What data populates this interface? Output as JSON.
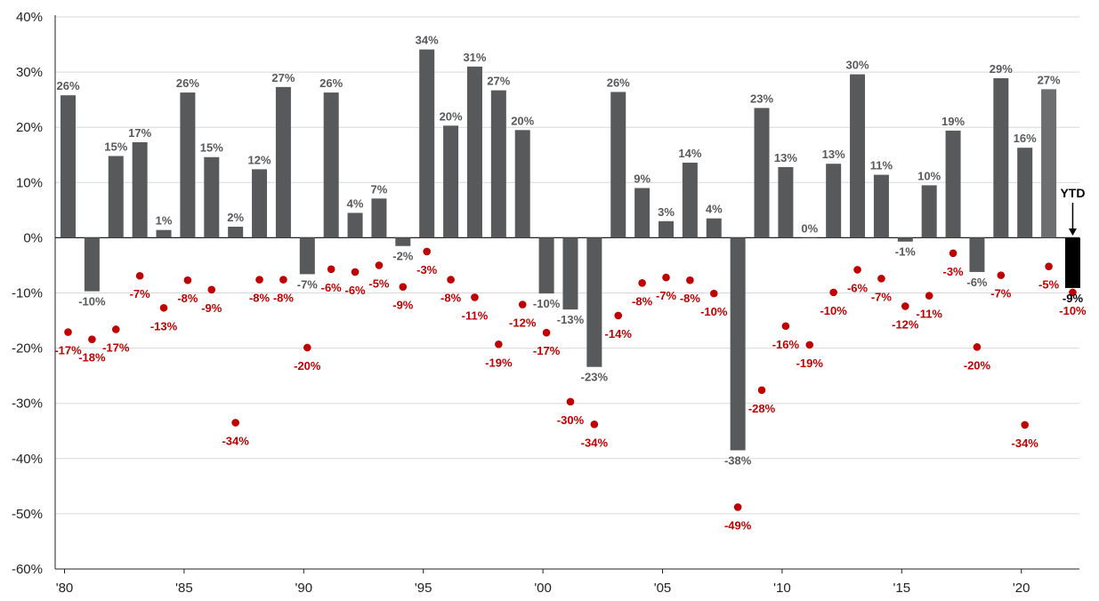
{
  "chart_data": {
    "type": "bar",
    "title": "",
    "xlabel": "",
    "ylabel": "",
    "ylim": [
      -60,
      40
    ],
    "yticks": [
      40,
      30,
      20,
      10,
      0,
      -10,
      -20,
      -30,
      -40,
      -50,
      -60
    ],
    "ytick_labels": [
      "40%",
      "30%",
      "20%",
      "10%",
      "0%",
      "-10%",
      "-20%",
      "-30%",
      "-40%",
      "-50%",
      "-60%"
    ],
    "grid": true,
    "x": [
      1980,
      1981,
      1982,
      1983,
      1984,
      1985,
      1986,
      1987,
      1988,
      1989,
      1990,
      1991,
      1992,
      1993,
      1994,
      1995,
      1996,
      1997,
      1998,
      1999,
      2000,
      2001,
      2002,
      2003,
      2004,
      2005,
      2006,
      2007,
      2008,
      2009,
      2010,
      2011,
      2012,
      2013,
      2014,
      2015,
      2016,
      2017,
      2018,
      2019,
      2020,
      2021,
      2022
    ],
    "xtick_years": [
      1980,
      1985,
      1990,
      1995,
      2000,
      2005,
      2010,
      2015,
      2020
    ],
    "xtick_labels": [
      "'80",
      "'85",
      "'90",
      "'95",
      "'00",
      "'05",
      "'10",
      "'15",
      "'20"
    ],
    "series": [
      {
        "role": "annual return",
        "values": [
          25.8,
          -9.7,
          14.8,
          17.3,
          1.4,
          26.3,
          14.6,
          2.0,
          12.4,
          27.3,
          -6.6,
          26.3,
          4.5,
          7.1,
          -1.5,
          34.1,
          20.3,
          31.0,
          26.7,
          19.5,
          -10.1,
          -13.0,
          -23.4,
          26.4,
          9.0,
          3.0,
          13.6,
          3.5,
          -38.5,
          23.5,
          12.8,
          0.0,
          13.4,
          29.6,
          11.4,
          -0.7,
          9.5,
          19.4,
          -6.2,
          28.9,
          16.3,
          26.9,
          -9.1
        ],
        "labels": [
          "26%",
          "-10%",
          "15%",
          "17%",
          "1%",
          "26%",
          "15%",
          "2%",
          "12%",
          "27%",
          "-7%",
          "26%",
          "4%",
          "7%",
          "-2%",
          "34%",
          "20%",
          "31%",
          "27%",
          "20%",
          "-10%",
          "-13%",
          "-23%",
          "26%",
          "9%",
          "3%",
          "14%",
          "4%",
          "-38%",
          "23%",
          "13%",
          "0%",
          "13%",
          "30%",
          "11%",
          "-1%",
          "10%",
          "19%",
          "-6%",
          "29%",
          "16%",
          "27%",
          "-9%"
        ]
      },
      {
        "role": "intra-year decline",
        "values": [
          -17.1,
          -18.4,
          -16.6,
          -6.9,
          -12.7,
          -7.7,
          -9.4,
          -33.5,
          -7.6,
          -7.6,
          -19.9,
          -5.7,
          -6.2,
          -5.0,
          -8.9,
          -2.5,
          -7.6,
          -10.8,
          -19.3,
          -12.1,
          -17.2,
          -29.7,
          -33.8,
          -14.1,
          -8.2,
          -7.2,
          -7.7,
          -10.1,
          -48.8,
          -27.6,
          -16.0,
          -19.4,
          -9.9,
          -5.8,
          -7.4,
          -12.4,
          -10.5,
          -2.8,
          -19.8,
          -6.8,
          -33.9,
          -5.2,
          -9.9
        ],
        "labels": [
          "-17%",
          "-18%",
          "-17%",
          "-7%",
          "-13%",
          "-8%",
          "-9%",
          "-34%",
          "-8%",
          "-8%",
          "-20%",
          "-6%",
          "-6%",
          "-5%",
          "-9%",
          "-3%",
          "-8%",
          "-11%",
          "-19%",
          "-12%",
          "-17%",
          "-30%",
          "-34%",
          "-14%",
          "-8%",
          "-7%",
          "-8%",
          "-10%",
          "-49%",
          "-28%",
          "-16%",
          "-19%",
          "-10%",
          "-6%",
          "-7%",
          "-12%",
          "-11%",
          "-3%",
          "-20%",
          "-7%",
          "-34%",
          "-5%",
          "-10%"
        ]
      }
    ],
    "annotation": {
      "text": "YTD",
      "year": 2022
    },
    "colors": {
      "bar": "#58595b",
      "bar_2021": "#6d6e70",
      "bar_ytd": "#000000",
      "bar_label": "#58595b",
      "ytd_label": "#000000",
      "dot": "#c00000",
      "grid": "#d9d9d9",
      "axis": "#222222"
    }
  }
}
